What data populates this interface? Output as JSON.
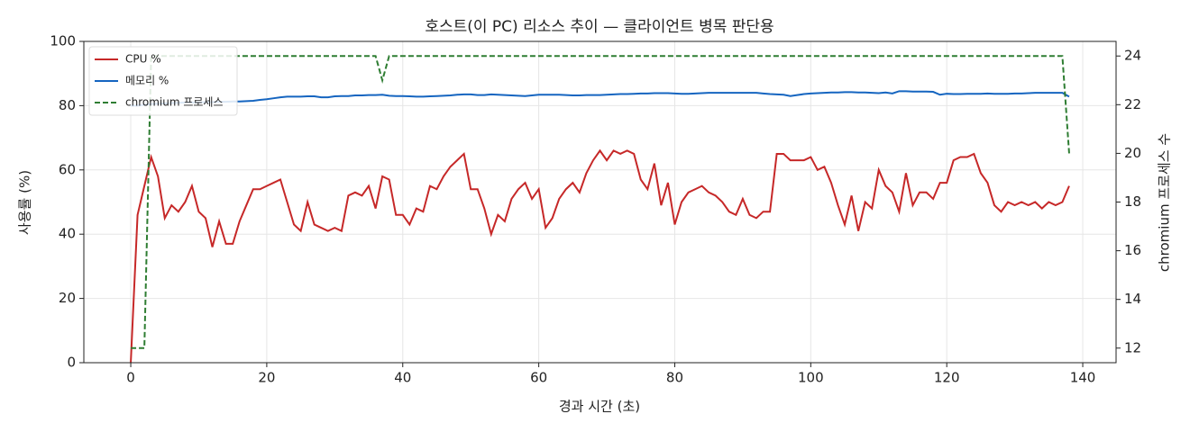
{
  "chart_data": {
    "type": "line",
    "title": "호스트(이 PC) 리소스 추이 — 클라이언트 병목 판단용",
    "x_label": "경과 시간 (초)",
    "y_label": "사용률 (%)",
    "y2_label": "chromium 프로세스 수",
    "x": [
      0,
      1,
      2,
      3,
      4,
      5,
      6,
      7,
      8,
      9,
      10,
      11,
      12,
      13,
      14,
      15,
      16,
      17,
      18,
      19,
      20,
      21,
      22,
      23,
      24,
      25,
      26,
      27,
      28,
      29,
      30,
      31,
      32,
      33,
      34,
      35,
      36,
      37,
      38,
      39,
      40,
      41,
      42,
      43,
      44,
      45,
      46,
      47,
      48,
      49,
      50,
      51,
      52,
      53,
      54,
      55,
      56,
      57,
      58,
      59,
      60,
      61,
      62,
      63,
      64,
      65,
      66,
      67,
      68,
      69,
      70,
      71,
      72,
      73,
      74,
      75,
      76,
      77,
      78,
      79,
      80,
      81,
      82,
      83,
      84,
      85,
      86,
      87,
      88,
      89,
      90,
      91,
      92,
      93,
      94,
      95,
      96,
      97,
      98,
      99,
      100,
      101,
      102,
      103,
      104,
      105,
      106,
      107,
      108,
      109,
      110,
      111,
      112,
      113,
      114,
      115,
      116,
      117,
      118,
      119,
      120,
      121,
      122,
      123,
      124,
      125,
      126,
      127,
      128,
      129,
      130,
      131,
      132,
      133,
      134,
      135,
      136,
      137,
      138
    ],
    "series": [
      {
        "name": "CPU %",
        "color": "#c62828",
        "linestyle": "solid",
        "values": [
          0,
          46,
          55,
          64,
          58,
          45,
          49,
          47,
          50,
          55,
          47,
          45,
          36,
          44,
          37,
          37,
          44,
          49,
          54,
          54,
          55,
          56,
          57,
          50,
          43,
          41,
          50,
          43,
          42,
          41,
          42,
          41,
          52,
          53,
          52,
          55,
          48,
          58,
          57,
          46,
          46,
          43,
          48,
          47,
          55,
          54,
          58,
          61,
          63,
          65,
          54,
          54,
          48,
          40,
          46,
          44,
          51,
          54,
          56,
          51,
          54,
          42,
          45,
          51,
          54,
          56,
          53,
          59,
          63,
          66,
          63,
          66,
          65,
          66,
          65,
          57,
          54,
          62,
          49,
          56,
          43,
          50,
          53,
          54,
          55,
          53,
          52,
          50,
          47,
          46,
          51,
          46,
          45,
          47,
          47,
          65,
          65,
          63,
          63,
          63,
          64,
          60,
          61,
          56,
          49,
          43,
          52,
          41,
          50,
          48,
          60,
          55,
          53,
          47,
          59,
          49,
          53,
          53,
          51,
          56,
          56,
          63,
          64,
          64,
          65,
          59,
          56,
          49,
          47,
          50,
          49,
          50,
          49,
          50,
          48,
          50,
          49,
          50,
          55
        ]
      },
      {
        "name": "메모리 %",
        "color": "#1565c0",
        "linestyle": "solid",
        "values": [
          80,
          80,
          80.3,
          80.5,
          80.6,
          80.7,
          80.8,
          80.9,
          81,
          81,
          81,
          81.1,
          81.1,
          81.2,
          81.2,
          81.3,
          81.3,
          81.4,
          81.5,
          81.8,
          82,
          82.3,
          82.6,
          82.8,
          82.8,
          82.8,
          82.9,
          82.9,
          82.6,
          82.6,
          82.9,
          83,
          83,
          83.2,
          83.2,
          83.3,
          83.3,
          83.4,
          83.1,
          83,
          83,
          82.9,
          82.8,
          82.8,
          82.9,
          83,
          83.1,
          83.2,
          83.4,
          83.5,
          83.5,
          83.3,
          83.3,
          83.5,
          83.4,
          83.3,
          83.2,
          83.1,
          83,
          83.2,
          83.4,
          83.4,
          83.4,
          83.4,
          83.3,
          83.2,
          83.2,
          83.3,
          83.3,
          83.3,
          83.4,
          83.5,
          83.6,
          83.6,
          83.7,
          83.8,
          83.8,
          83.9,
          83.9,
          83.9,
          83.8,
          83.7,
          83.7,
          83.8,
          83.9,
          84,
          84,
          84,
          84,
          84,
          84,
          84,
          84,
          83.8,
          83.6,
          83.5,
          83.4,
          83,
          83.3,
          83.6,
          83.8,
          83.9,
          84,
          84.1,
          84.1,
          84.2,
          84.2,
          84.1,
          84.1,
          84,
          83.9,
          84.1,
          83.8,
          84.5,
          84.5,
          84.4,
          84.4,
          84.4,
          84.3,
          83.4,
          83.7,
          83.6,
          83.6,
          83.7,
          83.7,
          83.7,
          83.8,
          83.7,
          83.7,
          83.7,
          83.8,
          83.8,
          83.9,
          84,
          84,
          84,
          84,
          84,
          82.8
        ]
      },
      {
        "name": "chromium 프로세스",
        "color": "#2e7d32",
        "linestyle": "dashed",
        "axis": "y2",
        "values": [
          12,
          12,
          12,
          24,
          24,
          24,
          24,
          24,
          24,
          24,
          24,
          24,
          24,
          24,
          24,
          24,
          24,
          24,
          24,
          24,
          24,
          24,
          24,
          24,
          24,
          24,
          24,
          24,
          24,
          24,
          24,
          24,
          24,
          24,
          24,
          24,
          24,
          23,
          24,
          24,
          24,
          24,
          24,
          24,
          24,
          24,
          24,
          24,
          24,
          24,
          24,
          24,
          24,
          24,
          24,
          24,
          24,
          24,
          24,
          24,
          24,
          24,
          24,
          24,
          24,
          24,
          24,
          24,
          24,
          24,
          24,
          24,
          24,
          24,
          24,
          24,
          24,
          24,
          24,
          24,
          24,
          24,
          24,
          24,
          24,
          24,
          24,
          24,
          24,
          24,
          24,
          24,
          24,
          24,
          24,
          24,
          24,
          24,
          24,
          24,
          24,
          24,
          24,
          24,
          24,
          24,
          24,
          24,
          24,
          24,
          24,
          24,
          24,
          24,
          24,
          24,
          24,
          24,
          24,
          24,
          24,
          24,
          24,
          24,
          24,
          24,
          24,
          24,
          24,
          24,
          24,
          24,
          24,
          24,
          24,
          24,
          24,
          24,
          20
        ]
      }
    ],
    "xlim": [
      -6.9,
      144.9
    ],
    "xticks": [
      0,
      20,
      40,
      60,
      80,
      100,
      120,
      140
    ],
    "ylim": [
      0,
      100
    ],
    "yticks": [
      0,
      20,
      40,
      60,
      80,
      100
    ],
    "y2lim": [
      11.4,
      24.6
    ],
    "y2ticks": [
      12,
      14,
      16,
      18,
      20,
      22,
      24
    ],
    "grid": true,
    "legend": "upper-left"
  }
}
